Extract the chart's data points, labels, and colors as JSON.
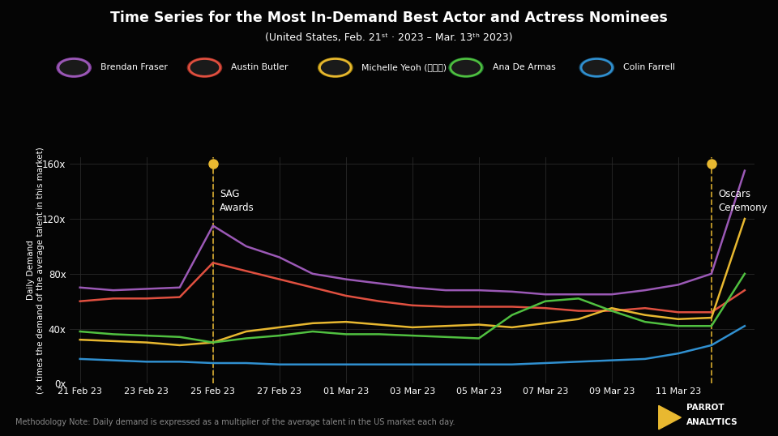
{
  "title": "Time Series for the Most In-Demand Best Actor and Actress Nominees",
  "subtitle": "(United States, Feb. 21ˢᵗ · 2023 – Mar. 13ᵗʰ 2023)",
  "ylabel": "Daily Demand\n(× times the demand of the average talent in this market)",
  "methodology": "Methodology Note: Daily demand is expressed as a multiplier of the average talent in the US market each day.",
  "background_color": "#050505",
  "grid_color": "#2a2a2a",
  "text_color": "#ffffff",
  "x_labels": [
    "21 Feb 23",
    "23 Feb 23",
    "25 Feb 23",
    "27 Feb 23",
    "01 Mar 23",
    "03 Mar 23",
    "05 Mar 23",
    "07 Mar 23",
    "09 Mar 23",
    "11 Mar 23"
  ],
  "y_ticks": [
    0,
    40,
    80,
    120,
    160
  ],
  "y_tick_labels": [
    "0x",
    "40x",
    "80x",
    "120x",
    "160x"
  ],
  "sag_label": "SAG\nAwards",
  "oscars_label": "Oscars\nCeremony",
  "series": [
    {
      "name": "Brendan Fraser",
      "color": "#9b59b6",
      "border_color": "#7d3c98",
      "values": [
        70,
        68,
        69,
        70,
        115,
        100,
        92,
        80,
        76,
        73,
        70,
        68,
        68,
        67,
        65,
        65,
        65,
        68,
        72,
        80,
        155
      ]
    },
    {
      "name": "Austin Butler",
      "color": "#e05040",
      "border_color": "#922b21",
      "values": [
        60,
        62,
        62,
        63,
        88,
        82,
        76,
        70,
        64,
        60,
        57,
        56,
        56,
        56,
        55,
        53,
        53,
        55,
        52,
        52,
        68
      ]
    },
    {
      "name": "Michelle Yeoh (杨紫瓊)",
      "color": "#e8b830",
      "border_color": "#9a7d0a",
      "values": [
        32,
        31,
        30,
        28,
        30,
        38,
        41,
        44,
        45,
        43,
        41,
        42,
        43,
        41,
        44,
        47,
        55,
        50,
        47,
        48,
        120
      ]
    },
    {
      "name": "Ana De Armas",
      "color": "#50c040",
      "border_color": "#1d6e2a",
      "values": [
        38,
        36,
        35,
        34,
        30,
        33,
        35,
        38,
        36,
        36,
        35,
        34,
        33,
        50,
        60,
        62,
        53,
        45,
        42,
        42,
        80
      ]
    },
    {
      "name": "Colin Farrell",
      "color": "#3090d0",
      "border_color": "#1a5276",
      "values": [
        18,
        17,
        16,
        16,
        15,
        15,
        14,
        14,
        14,
        14,
        14,
        14,
        14,
        14,
        15,
        16,
        17,
        18,
        22,
        28,
        42
      ]
    }
  ],
  "num_points": 21,
  "sag_idx": 4,
  "oscars_idx": 19,
  "x_tick_positions": [
    0,
    2,
    4,
    6,
    8,
    10,
    12,
    14,
    16,
    18
  ]
}
